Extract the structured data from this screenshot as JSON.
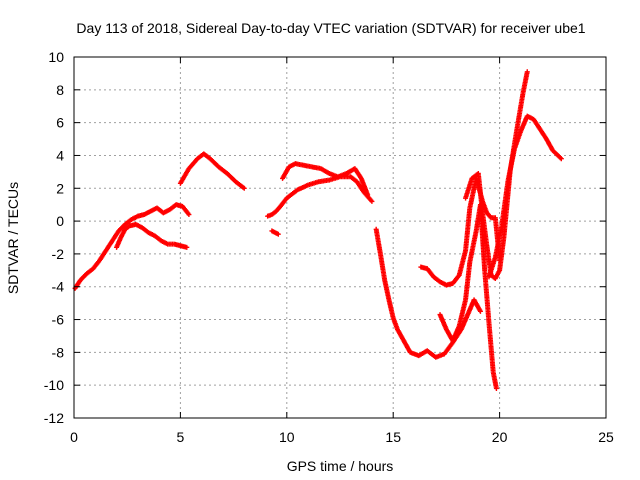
{
  "chart_data": {
    "type": "scatter",
    "title": "Day 113 of 2018, Sidereal Day-to-day VTEC variation (SDTVAR) for receiver ube1",
    "xlabel": "GPS time / hours",
    "ylabel": "SDTVAR / TECUs",
    "xlim": [
      0,
      25
    ],
    "ylim": [
      -12,
      10
    ],
    "xticks": [
      "0",
      "5",
      "10",
      "15",
      "20",
      "25"
    ],
    "yticks": [
      "-12",
      "-10",
      "-8",
      "-6",
      "-4",
      "-2",
      "0",
      "2",
      "4",
      "6",
      "8",
      "10"
    ],
    "grid": true,
    "marker": "plus",
    "series_color": "#ff0000",
    "series": [
      {
        "x": [
          0.05,
          0.3,
          0.6,
          0.9,
          1.2,
          1.5,
          1.8,
          2.1,
          2.4,
          2.7,
          3.0,
          3.3,
          3.6,
          3.9,
          4.2,
          4.5,
          4.8,
          5.1,
          5.4
        ],
        "y": [
          -4.1,
          -3.6,
          -3.2,
          -2.9,
          -2.4,
          -1.8,
          -1.2,
          -0.6,
          -0.2,
          0.1,
          0.3,
          0.4,
          0.6,
          0.8,
          0.5,
          0.7,
          1.0,
          0.9,
          0.4
        ]
      },
      {
        "x": [
          2.0,
          2.2,
          2.4,
          2.6,
          2.9,
          3.2,
          3.5,
          3.8,
          4.1,
          4.4,
          4.7,
          5.0,
          5.3
        ],
        "y": [
          -1.6,
          -1.0,
          -0.5,
          -0.3,
          -0.2,
          -0.4,
          -0.7,
          -0.9,
          -1.2,
          -1.4,
          -1.4,
          -1.5,
          -1.6
        ]
      },
      {
        "x": [
          5.0,
          5.4,
          5.8,
          6.1,
          6.4,
          6.8,
          7.2,
          7.6,
          8.0
        ],
        "y": [
          2.3,
          3.2,
          3.8,
          4.1,
          3.8,
          3.3,
          2.9,
          2.4,
          2.0
        ]
      },
      {
        "x": [
          9.1,
          9.3,
          9.5,
          9.7,
          10.0,
          10.5,
          11.0,
          11.5,
          12.0,
          12.5,
          13.0,
          13.3,
          13.6,
          14.0
        ],
        "y": [
          0.3,
          0.4,
          0.6,
          0.9,
          1.4,
          1.9,
          2.2,
          2.4,
          2.5,
          2.7,
          2.7,
          2.4,
          1.8,
          1.2
        ]
      },
      {
        "x": [
          9.3,
          9.6
        ],
        "y": [
          -0.6,
          -0.8
        ]
      },
      {
        "x": [
          9.8,
          10.1,
          10.4,
          10.8,
          11.2,
          11.6,
          12.0,
          12.4,
          12.8,
          13.2,
          13.5,
          13.8
        ],
        "y": [
          2.6,
          3.3,
          3.5,
          3.4,
          3.3,
          3.2,
          2.9,
          2.7,
          2.9,
          3.2,
          2.6,
          1.6
        ]
      },
      {
        "x": [
          14.2,
          14.4,
          14.6,
          14.8,
          15.0,
          15.2,
          15.5,
          15.8,
          16.2,
          16.6,
          17.0,
          17.4,
          17.8,
          18.2,
          18.5,
          18.8,
          19.1
        ],
        "y": [
          -0.5,
          -2.0,
          -3.6,
          -4.8,
          -5.9,
          -6.6,
          -7.3,
          -8.0,
          -8.2,
          -7.9,
          -8.3,
          -8.1,
          -7.4,
          -6.6,
          -5.7,
          -4.8,
          -5.5
        ]
      },
      {
        "x": [
          16.3,
          16.6,
          16.9,
          17.2,
          17.5,
          17.8,
          18.1,
          18.4,
          18.6,
          18.9,
          19.2,
          19.4,
          19.6,
          19.8,
          20.0
        ],
        "y": [
          -2.8,
          -2.9,
          -3.4,
          -3.7,
          -3.9,
          -3.8,
          -3.3,
          -1.8,
          0.8,
          2.6,
          1.2,
          0.5,
          0.2,
          0.2,
          -2.4
        ]
      },
      {
        "x": [
          17.2,
          17.5,
          17.8,
          18.1,
          18.4,
          18.6,
          18.9,
          19.1,
          19.3,
          19.5,
          19.7,
          19.85
        ],
        "y": [
          -5.7,
          -6.6,
          -7.3,
          -6.4,
          -4.8,
          -2.5,
          -0.6,
          1.0,
          -3.0,
          -6.2,
          -9.2,
          -10.2
        ]
      },
      {
        "x": [
          18.4,
          18.7,
          19.0,
          19.2,
          19.4,
          19.6,
          19.8,
          20.0,
          20.2,
          20.5,
          20.8,
          21.1,
          21.3
        ],
        "y": [
          1.4,
          2.6,
          2.9,
          0.5,
          -1.5,
          -3.3,
          -3.5,
          -3.0,
          -1.0,
          3.1,
          5.5,
          7.8,
          9.1
        ]
      },
      {
        "x": [
          19.5,
          19.8,
          20.1,
          20.4,
          20.7,
          21.0,
          21.3,
          21.6,
          21.9,
          22.2,
          22.5,
          22.9
        ],
        "y": [
          -3.4,
          -2.2,
          -0.3,
          2.5,
          4.4,
          5.5,
          6.4,
          6.2,
          5.6,
          5.0,
          4.3,
          3.8
        ]
      }
    ]
  }
}
